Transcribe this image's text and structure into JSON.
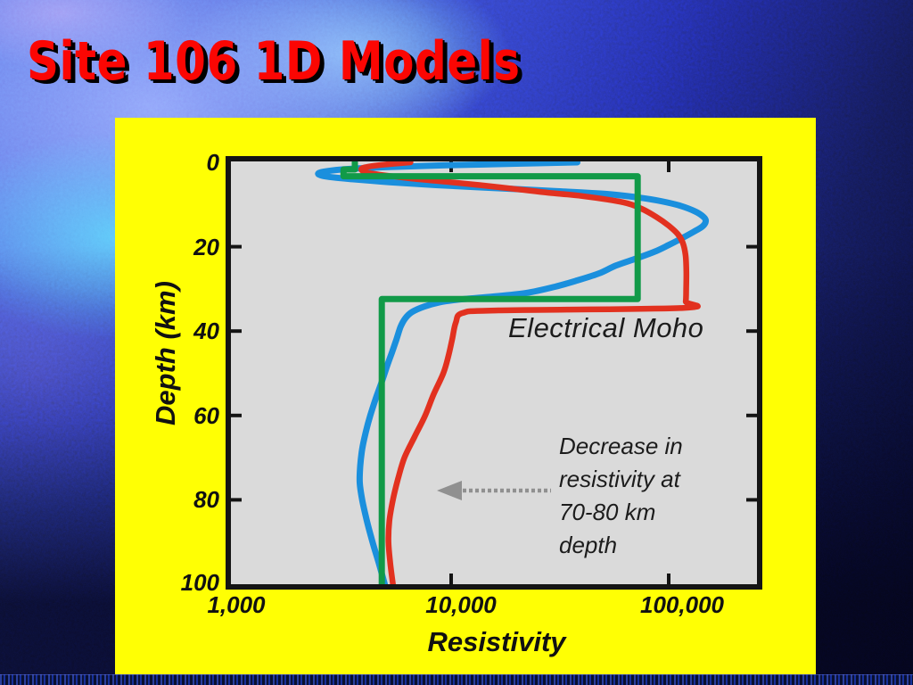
{
  "slide": {
    "title": "Site 106 1D Models",
    "title_color": "#fb0603",
    "panel_color": "#ffff04",
    "background_style": "mottled blue-purple texture"
  },
  "chart_data": {
    "type": "line",
    "title": "",
    "xlabel": "Resistivity",
    "ylabel": "Depth (km)",
    "x_scale": "log",
    "xlim": [
      1000,
      263000
    ],
    "ylim": [
      0,
      100
    ],
    "y_inverted": true,
    "grid": false,
    "plot_bg": "#dadada",
    "x_ticks": [
      "1,000",
      "10,000",
      "100,000"
    ],
    "x_tick_values": [
      1000,
      10000,
      100000
    ],
    "y_ticks": [
      "0",
      "20",
      "40",
      "60",
      "80",
      "100"
    ],
    "y_tick_values": [
      0,
      20,
      40,
      60,
      80,
      100
    ],
    "series": [
      {
        "name": "blue-inversion-model",
        "color": "#1a8fdd",
        "width": 7,
        "smooth": true,
        "points": [
          [
            0,
            38000
          ],
          [
            0.3,
            21000
          ],
          [
            0.7,
            9500
          ],
          [
            1.1,
            5200
          ],
          [
            1.6,
            3300
          ],
          [
            2.2,
            2600
          ],
          [
            2.8,
            2450
          ],
          [
            3.4,
            2700
          ],
          [
            4,
            3500
          ],
          [
            4.7,
            5200
          ],
          [
            5.4,
            8500
          ],
          [
            6.1,
            16000
          ],
          [
            6.8,
            30000
          ],
          [
            7.5,
            52000
          ],
          [
            8.3,
            72000
          ],
          [
            9.2,
            92000
          ],
          [
            10.3,
            113000
          ],
          [
            11.7,
            133000
          ],
          [
            13,
            145000
          ],
          [
            14,
            148000
          ],
          [
            15.2,
            143000
          ],
          [
            16.5,
            130000
          ],
          [
            18,
            115000
          ],
          [
            19.6,
            100000
          ],
          [
            21.2,
            86000
          ],
          [
            22.8,
            71000
          ],
          [
            24.5,
            57000
          ],
          [
            26.3,
            48000
          ],
          [
            28,
            38000
          ],
          [
            29.5,
            30000
          ],
          [
            31,
            22000
          ],
          [
            31.9,
            15000
          ],
          [
            32.5,
            11000
          ],
          [
            33.2,
            8800
          ],
          [
            34.2,
            7500
          ],
          [
            35.5,
            6600
          ],
          [
            37,
            6150
          ],
          [
            39,
            5850
          ],
          [
            42,
            5600
          ],
          [
            45,
            5350
          ],
          [
            48,
            5100
          ],
          [
            52,
            4800
          ],
          [
            56,
            4500
          ],
          [
            60,
            4250
          ],
          [
            64,
            4050
          ],
          [
            68,
            3900
          ],
          [
            72,
            3820
          ],
          [
            76,
            3800
          ],
          [
            80,
            3900
          ],
          [
            85,
            4100
          ],
          [
            90,
            4350
          ],
          [
            95,
            4650
          ],
          [
            100,
            4950
          ]
        ]
      },
      {
        "name": "red-inversion-model",
        "color": "#e2311f",
        "width": 6.5,
        "smooth": true,
        "points": [
          [
            0,
            6500
          ],
          [
            0.6,
            4800
          ],
          [
            1.2,
            4000
          ],
          [
            1.8,
            3870
          ],
          [
            2.4,
            4100
          ],
          [
            3,
            4800
          ],
          [
            3.8,
            6500
          ],
          [
            4.6,
            9500
          ],
          [
            5.4,
            13500
          ],
          [
            6.3,
            19500
          ],
          [
            7.2,
            28000
          ],
          [
            8,
            40000
          ],
          [
            9.5,
            62000
          ],
          [
            11,
            75000
          ],
          [
            13,
            88000
          ],
          [
            15,
            100000
          ],
          [
            17,
            110000
          ],
          [
            19,
            116000
          ],
          [
            22,
            119500
          ],
          [
            26,
            120500
          ],
          [
            30,
            120300
          ],
          [
            33,
            119800
          ],
          [
            34.5,
            117000
          ],
          [
            35.1,
            16500
          ],
          [
            35.7,
            11300
          ],
          [
            38,
            10500
          ],
          [
            42,
            10100
          ],
          [
            46,
            9700
          ],
          [
            50,
            9200
          ],
          [
            55,
            8300
          ],
          [
            60,
            7600
          ],
          [
            65,
            6800
          ],
          [
            70,
            6100
          ],
          [
            75,
            5700
          ],
          [
            80,
            5400
          ],
          [
            85,
            5200
          ],
          [
            90,
            5150
          ],
          [
            95,
            5250
          ],
          [
            100,
            5400
          ]
        ]
      },
      {
        "name": "green-layered-model",
        "color": "#119a48",
        "width": 7,
        "smooth": false,
        "points": [
          [
            0,
            3610
          ],
          [
            1.7,
            3610
          ],
          [
            1.7,
            3200
          ],
          [
            3.3,
            3200
          ],
          [
            3.3,
            72000
          ],
          [
            32.4,
            72000
          ],
          [
            32.4,
            4800
          ],
          [
            100,
            4800
          ]
        ]
      }
    ],
    "annotations": {
      "electrical_moho": "Electrical Moho",
      "decrease_note_lines": [
        "Decrease in",
        "resistivity at",
        "70-80 km",
        "depth"
      ],
      "arrow_direction": "left",
      "arrow_color": "#909090"
    }
  }
}
